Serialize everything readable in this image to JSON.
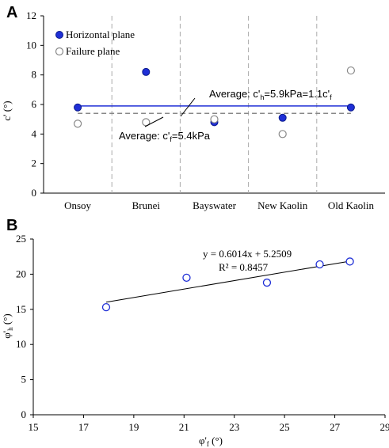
{
  "chart_data": [
    {
      "panel": "A",
      "type": "scatter",
      "categories": [
        "Onsoy",
        "Brunei",
        "Bayswater",
        "New Kaolin",
        "Old Kaolin"
      ],
      "ylabel": "c' (°)",
      "ylim": [
        0,
        12
      ],
      "yticks": [
        0,
        2,
        4,
        6,
        8,
        10,
        12
      ],
      "series": [
        {
          "name": "Horizontal plane",
          "marker": "filled",
          "color": "#1f2fd6",
          "values": [
            5.8,
            8.2,
            4.8,
            5.1,
            5.8
          ]
        },
        {
          "name": "Failure plane",
          "marker": "open",
          "color": "#888888",
          "values": [
            4.7,
            4.8,
            5.0,
            4.0,
            8.3
          ]
        }
      ],
      "reference_lines": [
        {
          "y": 5.9,
          "style": "solid",
          "color": "#1f2fd6"
        },
        {
          "y": 5.4,
          "style": "dashed",
          "color": "#888888"
        }
      ],
      "annotations": {
        "avg_h_prefix": "Average: c'",
        "avg_h_sub": "h",
        "avg_h_mid": "=5.9kPa=1.1c'",
        "avg_h_sub2": "f",
        "avg_f_prefix": "Average: c'",
        "avg_f_sub": "f",
        "avg_f_suffix": "=5.4kPa"
      },
      "legend": "top-left",
      "grid": false
    },
    {
      "panel": "B",
      "type": "scatter",
      "xlabel": "φ'f (°)",
      "ylabel": "φ'h (°)",
      "xlim": [
        15,
        29
      ],
      "ylim": [
        0,
        25
      ],
      "xticks": [
        15,
        17,
        19,
        21,
        23,
        25,
        27,
        29
      ],
      "yticks": [
        0,
        5,
        10,
        15,
        20,
        25
      ],
      "points": [
        {
          "x": 17.9,
          "y": 15.3
        },
        {
          "x": 21.1,
          "y": 19.5
        },
        {
          "x": 24.3,
          "y": 18.8
        },
        {
          "x": 26.4,
          "y": 21.4
        },
        {
          "x": 27.6,
          "y": 21.8
        }
      ],
      "trendline": {
        "slope": 0.6014,
        "intercept": 5.2509,
        "x_range": [
          17.9,
          27.6
        ]
      },
      "equation": "y = 0.6014x + 5.2509",
      "r_squared": "R² = 0.8457",
      "marker_color": "#1f2fd6",
      "grid": false
    }
  ]
}
